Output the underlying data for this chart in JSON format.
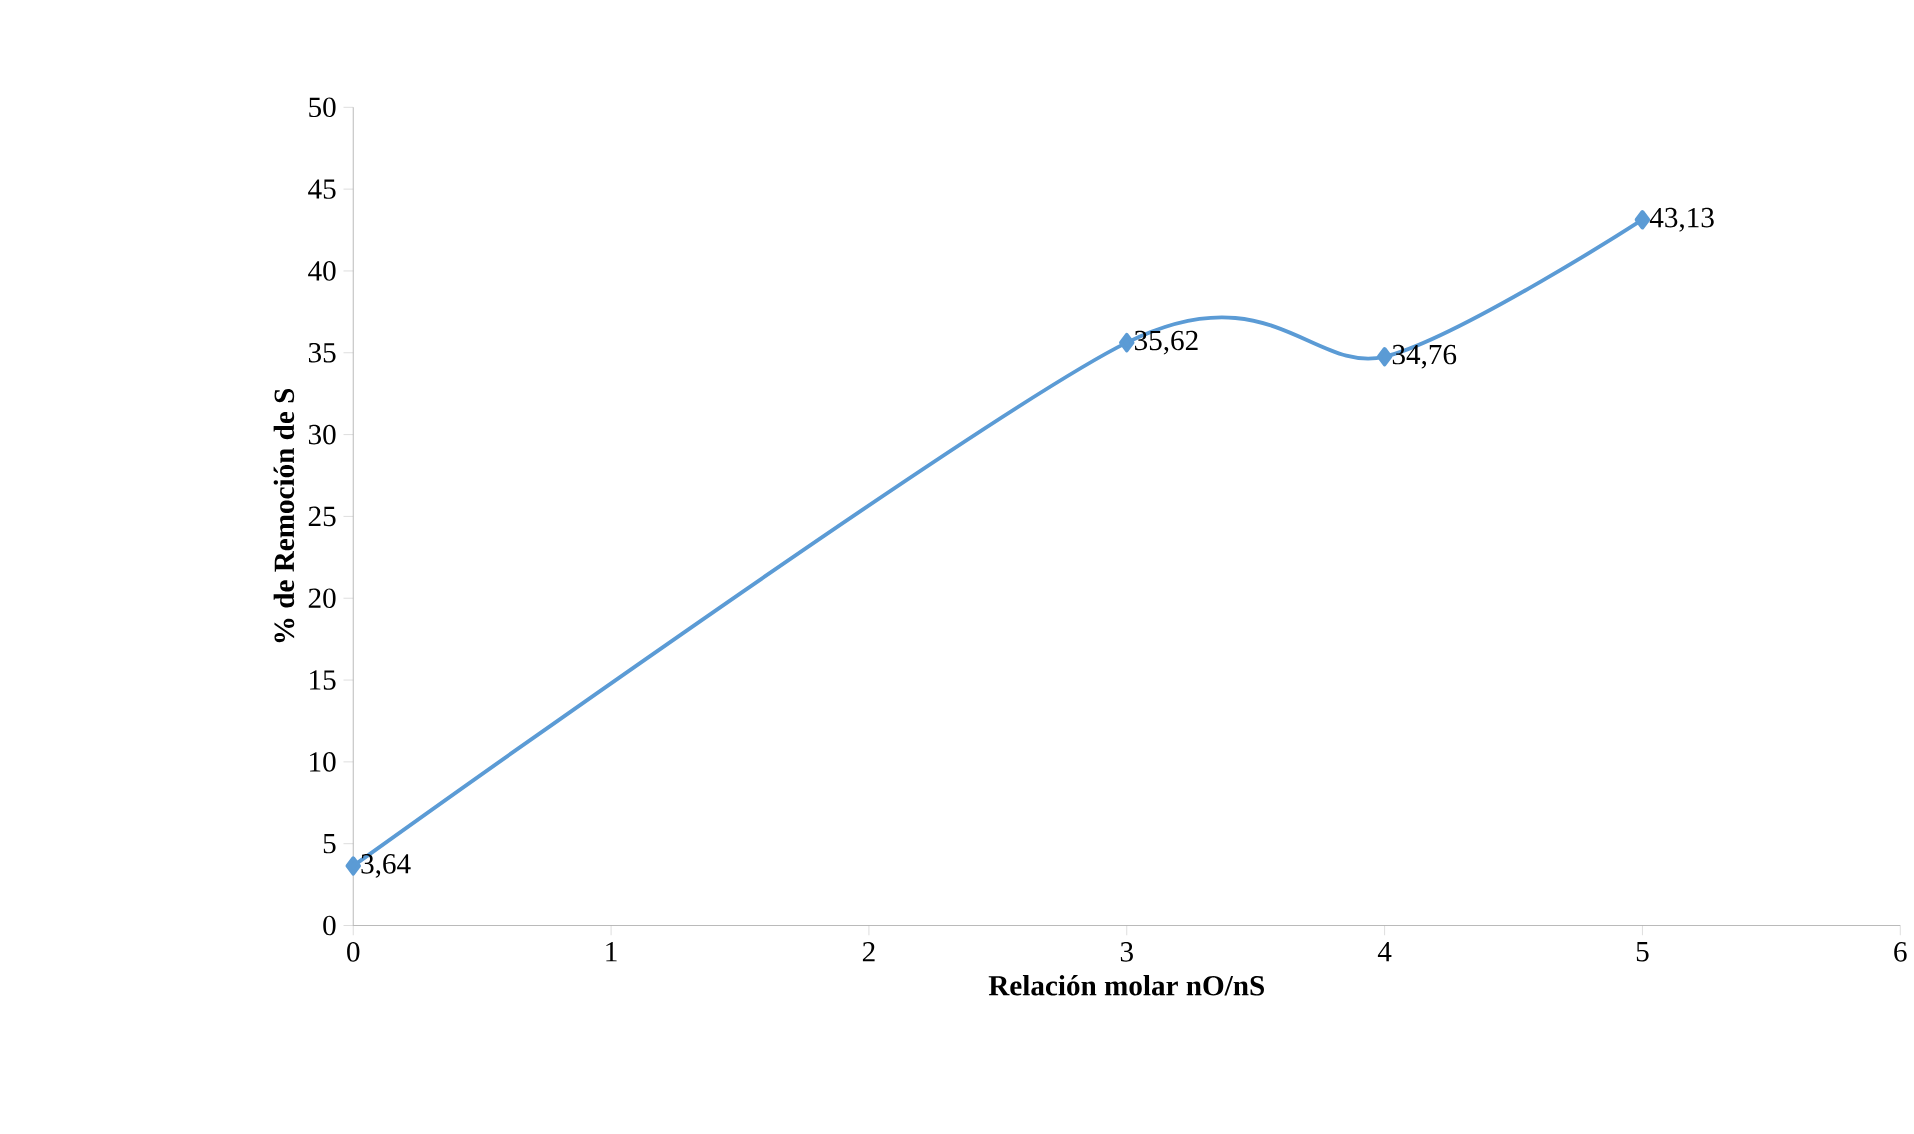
{
  "chart_data": {
    "type": "line",
    "xlabel": "Relación molar nO/nS",
    "ylabel": "% de Remoción de S",
    "x": [
      0,
      3,
      4,
      5
    ],
    "values": [
      3.64,
      35.62,
      34.76,
      43.13
    ],
    "color": "#5b9bd5",
    "marker": "diamond",
    "value_labels": [
      "3,64",
      "35,62",
      "34,76",
      "43,13"
    ],
    "xlim": [
      0,
      6
    ],
    "xticks": [
      0,
      1,
      2,
      3,
      4,
      5,
      6
    ],
    "ylim": [
      0,
      50
    ],
    "yticks": [
      0,
      5,
      10,
      15,
      20,
      25,
      30,
      35,
      40,
      45,
      50
    ]
  }
}
